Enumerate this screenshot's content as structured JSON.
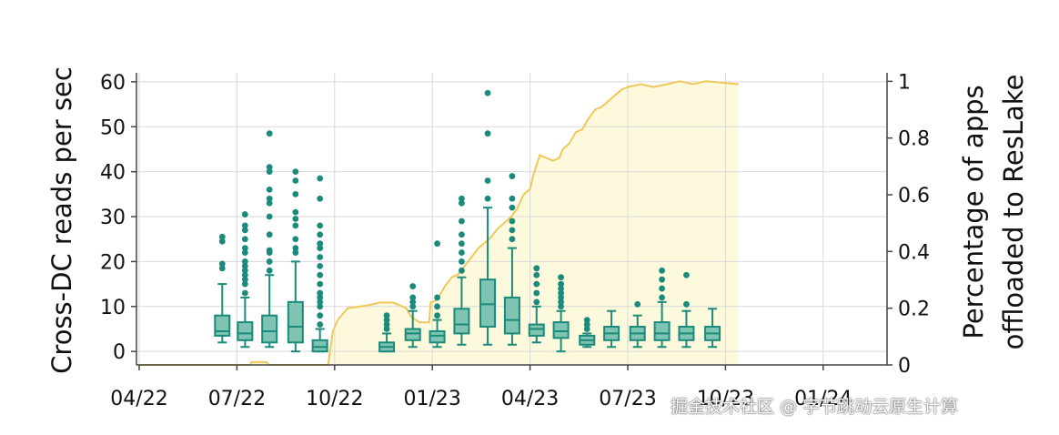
{
  "chart_data": {
    "type": "box",
    "ylabel": "Cross-DC reads per sec",
    "y2label": [
      "Percentage of apps",
      "offloaded to ResLake"
    ],
    "ylim": [
      -3,
      62
    ],
    "y2lim": [
      0,
      1.03
    ],
    "yticks": [
      "0",
      "10",
      "20",
      "30",
      "40",
      "50",
      "60"
    ],
    "y2ticks": [
      "0",
      "0.2",
      "0.4",
      "0.6",
      "0.8",
      "1"
    ],
    "xticks": [
      "04/22",
      "07/22",
      "10/22",
      "01/23",
      "04/23",
      "07/23",
      "10/23",
      "01/24"
    ],
    "grid": true,
    "colors": {
      "box_dark": "#1a8a7a",
      "box_fill": "#7fc3b2",
      "line": "#f0c85a",
      "area": "#fdf9dc"
    },
    "boxes": [
      {
        "x": 2.55,
        "q1": 3.5,
        "med": 4.5,
        "q3": 8,
        "lo": 2,
        "hi": 15,
        "out": [
          18.5,
          19.5,
          24.5,
          25.5
        ]
      },
      {
        "x": 3.25,
        "q1": 2.5,
        "med": 4,
        "q3": 6.5,
        "lo": 1,
        "hi": 12,
        "out": [
          13,
          15,
          16,
          17,
          18,
          19,
          20,
          22,
          23,
          25,
          27,
          28,
          30.5
        ]
      },
      {
        "x": 4.0,
        "q1": 2,
        "med": 4.5,
        "q3": 8,
        "lo": 1,
        "hi": 17,
        "out": [
          18,
          20,
          22,
          22.5,
          26,
          30,
          33,
          34,
          36,
          40,
          41,
          48.5
        ]
      },
      {
        "x": 4.8,
        "q1": 2,
        "med": 5.5,
        "q3": 11,
        "lo": 0,
        "hi": 20,
        "out": [
          22,
          23,
          25,
          28,
          29.5,
          31,
          35,
          38,
          40
        ]
      },
      {
        "x": 5.55,
        "q1": 0,
        "med": 1,
        "q3": 2.5,
        "lo": 0,
        "hi": 5,
        "out": [
          6,
          8,
          10,
          11,
          12,
          13,
          15,
          17,
          19,
          21,
          23,
          24,
          26,
          28,
          34,
          38.5
        ]
      },
      {
        "x": 7.6,
        "q1": 0,
        "med": 1,
        "q3": 2,
        "lo": 0,
        "hi": 4,
        "out": [
          5,
          6,
          7,
          8
        ]
      },
      {
        "x": 8.4,
        "q1": 2.5,
        "med": 4,
        "q3": 5,
        "lo": 1,
        "hi": 9,
        "out": [
          10,
          11,
          12,
          14.5
        ]
      },
      {
        "x": 9.15,
        "q1": 2,
        "med": 3.5,
        "q3": 4.5,
        "lo": 1,
        "hi": 7,
        "out": [
          8,
          10,
          12,
          24
        ]
      },
      {
        "x": 9.9,
        "q1": 4,
        "med": 6,
        "q3": 9.5,
        "lo": 1.5,
        "hi": 16.5,
        "out": [
          18,
          20,
          22,
          24,
          26,
          29,
          33,
          34
        ]
      },
      {
        "x": 10.7,
        "q1": 5.5,
        "med": 10.5,
        "q3": 16,
        "lo": 1.5,
        "hi": 32,
        "out": [
          34,
          38,
          48.5,
          57.5
        ]
      },
      {
        "x": 11.45,
        "q1": 4,
        "med": 7,
        "q3": 12,
        "lo": 1.5,
        "hi": 23,
        "out": [
          25,
          27,
          29,
          32,
          34,
          39
        ]
      },
      {
        "x": 12.2,
        "q1": 3.5,
        "med": 5,
        "q3": 6,
        "lo": 2,
        "hi": 10,
        "out": [
          11,
          13,
          15,
          17,
          18.5
        ]
      },
      {
        "x": 12.95,
        "q1": 3,
        "med": 4.5,
        "q3": 6.5,
        "lo": 0,
        "hi": 9,
        "out": [
          10,
          11,
          12,
          13,
          14,
          15,
          16.5
        ]
      },
      {
        "x": 13.75,
        "q1": 1.5,
        "med": 2.5,
        "q3": 3.5,
        "lo": 1,
        "hi": 4,
        "out": [
          5,
          6,
          7
        ]
      },
      {
        "x": 14.5,
        "q1": 2.5,
        "med": 4,
        "q3": 5.5,
        "lo": 1,
        "hi": 9,
        "out": []
      },
      {
        "x": 15.3,
        "q1": 2.5,
        "med": 4,
        "q3": 5.5,
        "lo": 1,
        "hi": 8,
        "out": [
          10.5
        ]
      },
      {
        "x": 16.05,
        "q1": 2.5,
        "med": 4,
        "q3": 6.5,
        "lo": 1,
        "hi": 11,
        "out": [
          12,
          14,
          16,
          18
        ]
      },
      {
        "x": 16.8,
        "q1": 2.5,
        "med": 4,
        "q3": 5.5,
        "lo": 1,
        "hi": 9,
        "out": [
          10.5,
          17
        ]
      },
      {
        "x": 17.6,
        "q1": 2.5,
        "med": 4,
        "q3": 5.5,
        "lo": 1,
        "hi": 9.5,
        "out": []
      }
    ],
    "line_points": [
      [
        0,
        0
      ],
      [
        3.4,
        0
      ],
      [
        3.45,
        0.01
      ],
      [
        3.9,
        0.01
      ],
      [
        4.0,
        0.0
      ],
      [
        5.8,
        0.0
      ],
      [
        5.9,
        0.08
      ],
      [
        5.95,
        0.12
      ],
      [
        6.1,
        0.16
      ],
      [
        6.4,
        0.2
      ],
      [
        7.0,
        0.21
      ],
      [
        7.4,
        0.22
      ],
      [
        7.8,
        0.22
      ],
      [
        8.2,
        0.2
      ],
      [
        8.35,
        0.17
      ],
      [
        8.6,
        0.15
      ],
      [
        8.9,
        0.15
      ],
      [
        8.95,
        0.22
      ],
      [
        9.15,
        0.23
      ],
      [
        9.3,
        0.26
      ],
      [
        9.4,
        0.28
      ],
      [
        9.6,
        0.31
      ],
      [
        9.8,
        0.32
      ],
      [
        10.0,
        0.35
      ],
      [
        10.2,
        0.38
      ],
      [
        10.4,
        0.41
      ],
      [
        10.6,
        0.43
      ],
      [
        10.8,
        0.45
      ],
      [
        11.0,
        0.48
      ],
      [
        11.2,
        0.5
      ],
      [
        11.4,
        0.52
      ],
      [
        11.6,
        0.55
      ],
      [
        11.8,
        0.6
      ],
      [
        12.0,
        0.62
      ],
      [
        12.1,
        0.67
      ],
      [
        12.3,
        0.74
      ],
      [
        12.5,
        0.73
      ],
      [
        12.7,
        0.72
      ],
      [
        12.9,
        0.73
      ],
      [
        13.0,
        0.76
      ],
      [
        13.2,
        0.78
      ],
      [
        13.4,
        0.82
      ],
      [
        13.6,
        0.83
      ],
      [
        13.8,
        0.87
      ],
      [
        14.0,
        0.9
      ],
      [
        14.2,
        0.91
      ],
      [
        14.4,
        0.93
      ],
      [
        14.6,
        0.95
      ],
      [
        14.8,
        0.97
      ],
      [
        15.0,
        0.98
      ],
      [
        15.4,
        0.99
      ],
      [
        15.8,
        0.98
      ],
      [
        16.2,
        0.99
      ],
      [
        16.6,
        1.0
      ],
      [
        17.0,
        0.99
      ],
      [
        17.4,
        1.0
      ],
      [
        18.4,
        0.99
      ]
    ]
  },
  "watermark": "掘金技术社区 @ 字节跳动云原生计算"
}
